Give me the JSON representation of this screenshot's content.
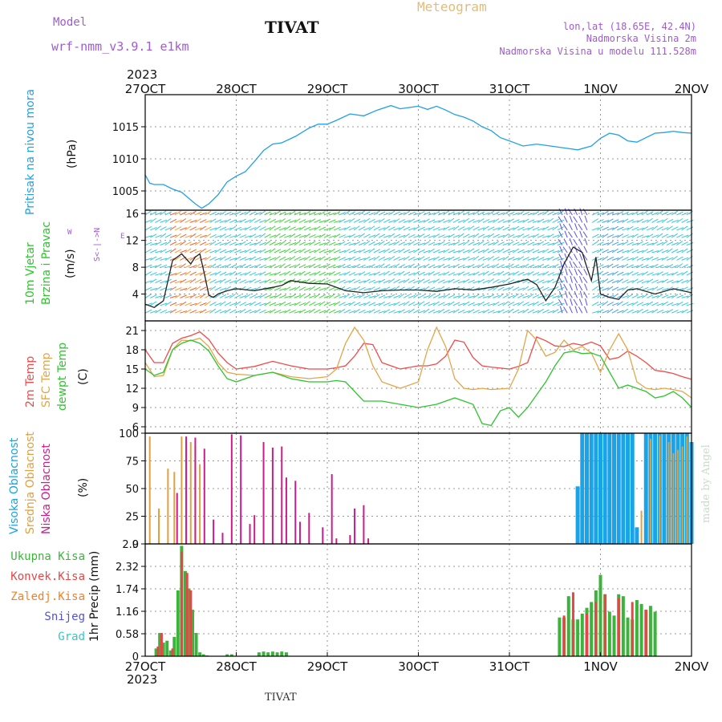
{
  "header": {
    "model_label": "Model",
    "model_name": "wrf-nmm_v3.9.1  e1km",
    "station": "TIVAT",
    "product": "Meteogram",
    "lonlat": "lon,lat (18.65E, 42.4N)",
    "elev": "Nadmorska Visina 2m",
    "model_elev": "Nadmorska Visina u modelu 111.528m",
    "year_top": "2023",
    "year_bottom": "2023",
    "footer_station": "TIVAT",
    "watermark": "made by Angel"
  },
  "colors": {
    "pressure": "#22a0e6",
    "temp2m": "#ef4b4b",
    "sfc": "#e3a64a",
    "dew": "#2ec42e",
    "high_cloud": "#1aa3e6",
    "mid_cloud": "#e0a040",
    "low_cloud": "#c81e8c",
    "precip_total": "#3cb43c",
    "precip_conv": "#e64646"
  },
  "chart_data": [
    {
      "type": "line",
      "panel": "pressure",
      "ylabel": "Pritisak na nivou mora",
      "unit": "(hPa)",
      "yticks": [
        1005,
        1010,
        1015
      ],
      "ylim": [
        1002,
        1020
      ],
      "x_ticks": [
        "27OCT",
        "28OCT",
        "29OCT",
        "30OCT",
        "31OCT",
        "1NOV",
        "2NOV"
      ],
      "grid": true,
      "series": [
        {
          "x": [
            0,
            0.05,
            0.1,
            0.2,
            0.3,
            0.4,
            0.55,
            0.62,
            0.7,
            0.8,
            0.9,
            1.0,
            1.1,
            1.2,
            1.3,
            1.4,
            1.5,
            1.65,
            1.8,
            1.9,
            2.0,
            2.1,
            2.25,
            2.4,
            2.55,
            2.7,
            2.8,
            2.9,
            3.0,
            3.1,
            3.2,
            3.3,
            3.4,
            3.5,
            3.6,
            3.7,
            3.8,
            3.9,
            4.0,
            4.15,
            4.3,
            4.45,
            4.6,
            4.75,
            4.9,
            5.0,
            5.1,
            5.2,
            5.3,
            5.4,
            5.5,
            5.6,
            5.7,
            5.8,
            5.9,
            6.0
          ],
          "values": [
            1007.5,
            1006.2,
            1006.0,
            1006.0,
            1005.3,
            1004.8,
            1003.0,
            1002.3,
            1003.0,
            1004.4,
            1006.4,
            1007.3,
            1008.0,
            1009.6,
            1011.3,
            1012.3,
            1012.5,
            1013.5,
            1014.8,
            1015.4,
            1015.4,
            1016.0,
            1017.0,
            1016.7,
            1017.6,
            1018.3,
            1017.8,
            1018.0,
            1018.2,
            1017.7,
            1018.2,
            1017.6,
            1016.9,
            1016.5,
            1015.9,
            1015.0,
            1014.4,
            1013.3,
            1012.8,
            1012.0,
            1012.3,
            1012.0,
            1011.7,
            1011.4,
            1012.0,
            1013.2,
            1014.0,
            1013.7,
            1012.8,
            1012.6,
            1013.3,
            1014.0,
            1014.1,
            1014.3,
            1014.1,
            1014.0
          ]
        }
      ]
    },
    {
      "type": "line",
      "panel": "wind",
      "ylabel": "10m Vjetar Brzina i Pravac",
      "unit": "(m/s)",
      "yticks": [
        4,
        8,
        12,
        16
      ],
      "ylim": [
        0,
        16.5
      ],
      "compass": {
        "n": "N",
        "s": "S",
        "e": "E",
        "w": "W"
      },
      "series": [
        {
          "name": "speed",
          "x": [
            0,
            0.1,
            0.2,
            0.3,
            0.4,
            0.5,
            0.55,
            0.6,
            0.65,
            0.7,
            0.75,
            0.8,
            0.9,
            1.0,
            1.2,
            1.4,
            1.5,
            1.6,
            1.8,
            2.0,
            2.2,
            2.4,
            2.6,
            2.8,
            3.0,
            3.2,
            3.4,
            3.6,
            3.8,
            4.0,
            4.2,
            4.3,
            4.4,
            4.5,
            4.6,
            4.7,
            4.8,
            4.85,
            4.9,
            4.95,
            5.0,
            5.1,
            5.2,
            5.3,
            5.4,
            5.6,
            5.8,
            6.0
          ],
          "values": [
            2.5,
            2.0,
            3.0,
            9.0,
            10.0,
            8.5,
            9.5,
            10.0,
            7.0,
            3.8,
            3.5,
            4.0,
            4.5,
            4.8,
            4.5,
            5.0,
            5.3,
            6.0,
            5.6,
            5.5,
            4.5,
            4.2,
            4.5,
            4.6,
            4.6,
            4.4,
            4.8,
            4.6,
            5.0,
            5.5,
            6.2,
            5.4,
            3.0,
            5.0,
            8.5,
            11.0,
            10.2,
            8.0,
            6.0,
            9.5,
            4.0,
            3.5,
            3.2,
            4.6,
            4.8,
            4.0,
            4.8,
            4.2
          ]
        }
      ]
    },
    {
      "type": "line",
      "panel": "temperature",
      "ylabel": [
        "2m Temp",
        "SFC Temp",
        "dewpt Temp"
      ],
      "unit": "(C)",
      "yticks": [
        6,
        9,
        12,
        15,
        18,
        21
      ],
      "ylim": [
        5,
        22.5
      ],
      "series": [
        {
          "name": "2m Temp",
          "x": [
            0,
            0.1,
            0.2,
            0.3,
            0.4,
            0.5,
            0.6,
            0.7,
            0.8,
            0.9,
            1.0,
            1.2,
            1.4,
            1.6,
            1.8,
            2.0,
            2.1,
            2.2,
            2.3,
            2.4,
            2.5,
            2.6,
            2.7,
            2.8,
            3.0,
            3.1,
            3.2,
            3.3,
            3.4,
            3.5,
            3.6,
            3.7,
            3.8,
            4.0,
            4.1,
            4.2,
            4.3,
            4.4,
            4.5,
            4.6,
            4.7,
            4.8,
            4.9,
            5.0,
            5.1,
            5.2,
            5.3,
            5.4,
            5.5,
            5.6,
            5.7,
            5.8,
            5.9,
            6.0
          ],
          "values": [
            18.0,
            16.0,
            16.0,
            19.0,
            19.8,
            20.2,
            20.8,
            19.6,
            17.5,
            16.0,
            15.0,
            15.4,
            16.2,
            15.5,
            15.0,
            15.0,
            15.2,
            15.5,
            17.0,
            19.0,
            18.8,
            16.0,
            15.5,
            15.0,
            15.5,
            15.5,
            15.8,
            17.0,
            19.5,
            19.2,
            16.8,
            15.5,
            15.3,
            15.0,
            15.4,
            16.0,
            20.0,
            19.4,
            18.6,
            18.5,
            19.0,
            18.7,
            19.2,
            18.6,
            16.5,
            16.8,
            17.8,
            17.0,
            16.0,
            14.8,
            14.6,
            14.3,
            13.8,
            13.4
          ]
        },
        {
          "name": "SFC Temp",
          "x": [
            0,
            0.1,
            0.2,
            0.3,
            0.4,
            0.5,
            0.6,
            0.7,
            0.8,
            0.9,
            1.0,
            1.2,
            1.4,
            1.6,
            1.8,
            2.0,
            2.1,
            2.2,
            2.3,
            2.4,
            2.5,
            2.6,
            2.7,
            2.8,
            3.0,
            3.1,
            3.2,
            3.3,
            3.4,
            3.5,
            3.6,
            3.7,
            3.8,
            4.0,
            4.1,
            4.2,
            4.3,
            4.4,
            4.5,
            4.6,
            4.7,
            4.8,
            4.9,
            5.0,
            5.1,
            5.2,
            5.3,
            5.4,
            5.5,
            5.6,
            5.7,
            5.8,
            5.9,
            6.0
          ],
          "values": [
            16.0,
            13.8,
            14.0,
            18.0,
            19.5,
            19.4,
            19.8,
            18.5,
            16.0,
            14.5,
            14.2,
            14.0,
            14.5,
            13.8,
            13.5,
            13.8,
            15.0,
            19.0,
            21.5,
            19.5,
            15.5,
            13.0,
            12.5,
            12.0,
            13.0,
            18.0,
            21.5,
            18.5,
            13.5,
            12.0,
            11.8,
            12.0,
            11.8,
            12.0,
            15.0,
            21.0,
            19.5,
            17.0,
            17.6,
            19.5,
            18.0,
            18.5,
            17.5,
            14.5,
            18.0,
            20.5,
            18.0,
            13.0,
            12.0,
            11.8,
            12.0,
            11.8,
            11.5,
            10.5
          ]
        },
        {
          "name": "dewpt Temp",
          "x": [
            0,
            0.1,
            0.2,
            0.3,
            0.4,
            0.5,
            0.6,
            0.7,
            0.8,
            0.9,
            1.0,
            1.2,
            1.4,
            1.6,
            1.8,
            2.0,
            2.1,
            2.2,
            2.4,
            2.6,
            2.8,
            3.0,
            3.2,
            3.4,
            3.6,
            3.7,
            3.8,
            3.9,
            4.0,
            4.1,
            4.2,
            4.3,
            4.4,
            4.5,
            4.6,
            4.7,
            4.8,
            4.9,
            5.0,
            5.1,
            5.2,
            5.3,
            5.4,
            5.5,
            5.6,
            5.7,
            5.8,
            5.9,
            6.0
          ],
          "values": [
            15.0,
            14.0,
            14.5,
            18.0,
            19.0,
            19.5,
            19.0,
            17.8,
            15.5,
            13.5,
            13.0,
            14.0,
            14.5,
            13.5,
            13.0,
            13.0,
            13.2,
            13.0,
            10.0,
            10.0,
            9.5,
            9.0,
            9.5,
            10.5,
            9.5,
            6.5,
            6.2,
            8.5,
            9.0,
            7.5,
            9.0,
            11.0,
            13.0,
            15.5,
            17.5,
            17.8,
            17.4,
            17.5,
            17.0,
            14.5,
            12.0,
            12.5,
            12.0,
            11.5,
            10.5,
            10.8,
            11.5,
            10.5,
            9.0
          ]
        }
      ]
    },
    {
      "type": "bar",
      "panel": "cloud",
      "ylabel": [
        "Visoka Oblacnost",
        "Srednja Oblacnost",
        "Niska Oblacnost"
      ],
      "unit": "(%)",
      "yticks": [
        0,
        25,
        50,
        75,
        100
      ],
      "ylim": [
        0,
        100
      ],
      "series": [
        {
          "name": "Visoka Oblacnost",
          "x": [
            4.75,
            4.8,
            4.85,
            4.9,
            4.95,
            5.0,
            5.05,
            5.1,
            5.15,
            5.2,
            5.25,
            5.3,
            5.35,
            5.4,
            5.5,
            5.55,
            5.6,
            5.65,
            5.7,
            5.75,
            5.8,
            5.85,
            5.9,
            5.95,
            6.0
          ],
          "values": [
            52,
            100,
            100,
            100,
            100,
            100,
            100,
            100,
            100,
            100,
            100,
            100,
            100,
            15,
            100,
            100,
            100,
            100,
            100,
            100,
            100,
            100,
            100,
            100,
            92
          ]
        },
        {
          "name": "Srednja Oblacnost",
          "x": [
            0.05,
            0.15,
            0.25,
            0.32,
            0.4,
            0.45,
            0.5,
            0.55,
            0.6,
            5.45,
            5.55,
            5.65,
            5.75,
            5.8,
            5.85,
            5.9,
            5.95
          ],
          "values": [
            97,
            32,
            68,
            65,
            97,
            93,
            92,
            88,
            72,
            30,
            95,
            98,
            92,
            82,
            85,
            88,
            97
          ]
        },
        {
          "name": "Niska Oblacnost",
          "x": [
            0.35,
            0.45,
            0.55,
            0.65,
            0.75,
            0.85,
            0.95,
            1.05,
            1.15,
            1.2,
            1.3,
            1.4,
            1.5,
            1.55,
            1.65,
            1.7,
            1.8,
            1.85,
            1.95,
            2.05,
            2.1,
            2.25,
            2.3,
            2.4,
            2.45
          ],
          "values": [
            46,
            97,
            96,
            86,
            22,
            10,
            99,
            98,
            18,
            26,
            92,
            87,
            88,
            60,
            57,
            20,
            28,
            0,
            15,
            63,
            5,
            8,
            32,
            35,
            5
          ]
        }
      ]
    },
    {
      "type": "bar",
      "panel": "precip",
      "ylabel": "1hr Precip",
      "unit": "(mm)",
      "legend": [
        "Ukupna Kisa",
        "Konvek.Kisa",
        "Zaledj.Kisa",
        "Snijeg",
        "Grad"
      ],
      "yticks": [
        0,
        0.58,
        1.16,
        1.74,
        2.32,
        2.9
      ],
      "ylim": [
        0,
        2.9
      ],
      "x_ticks": [
        "27OCT",
        "28OCT",
        "29OCT",
        "30OCT",
        "31OCT",
        "1NOV",
        "2NOV"
      ],
      "series": [
        {
          "name": "Ukupna Kisa",
          "x": [
            0.12,
            0.16,
            0.2,
            0.24,
            0.28,
            0.32,
            0.36,
            0.4,
            0.44,
            0.48,
            0.52,
            0.56,
            0.6,
            0.64,
            0.68,
            0.9,
            0.95,
            1.25,
            1.3,
            1.35,
            1.4,
            1.45,
            1.5,
            1.55,
            4.55,
            4.6,
            4.65,
            4.7,
            4.75,
            4.8,
            4.85,
            4.9,
            4.95,
            5.0,
            5.05,
            5.1,
            5.15,
            5.2,
            5.25,
            5.3,
            5.35,
            5.4,
            5.45,
            5.5,
            5.55,
            5.6
          ],
          "values": [
            0.2,
            0.6,
            0.35,
            0.4,
            0.15,
            0.5,
            1.7,
            2.85,
            2.2,
            1.75,
            1.2,
            0.6,
            0.1,
            0.05,
            0.02,
            0.05,
            0.05,
            0.1,
            0.12,
            0.1,
            0.12,
            0.1,
            0.12,
            0.1,
            1.0,
            1.0,
            1.55,
            0.95,
            0.95,
            1.1,
            1.25,
            1.4,
            1.7,
            2.1,
            1.6,
            1.15,
            1.05,
            1.6,
            1.55,
            1.0,
            0.95,
            1.45,
            1.35,
            1.2,
            1.3,
            1.15
          ]
        },
        {
          "name": "Konvek.Kisa",
          "x": [
            0.14,
            0.18,
            0.3,
            0.4,
            0.46,
            0.5,
            4.6,
            4.7,
            4.85,
            4.95,
            5.05,
            5.2,
            5.35,
            5.5
          ],
          "values": [
            0.25,
            0.6,
            0.2,
            2.7,
            2.15,
            1.7,
            1.05,
            1.65,
            1.1,
            1.4,
            1.6,
            1.5,
            1.4,
            1.2
          ]
        }
      ]
    }
  ]
}
